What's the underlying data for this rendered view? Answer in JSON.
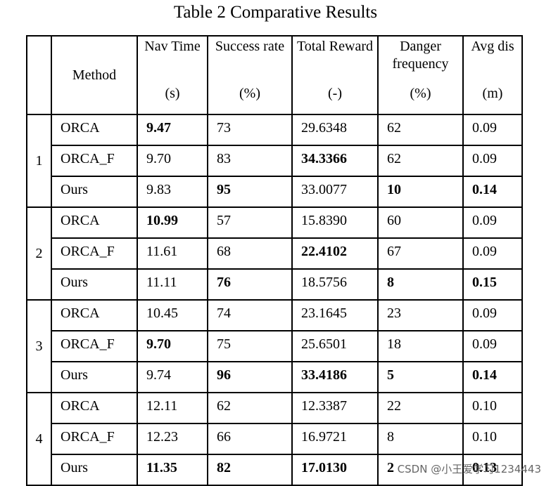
{
  "title": "Table 2 Comparative Results",
  "table": {
    "header": {
      "method": "Method",
      "columns": [
        {
          "name": "Nav Time",
          "unit": "(s)"
        },
        {
          "name": "Success rate",
          "unit": "(%)"
        },
        {
          "name": "Total Reward",
          "unit": "(-)"
        },
        {
          "name": "Danger frequency",
          "unit": "(%)"
        },
        {
          "name": "Avg dis",
          "unit": "(m)"
        }
      ]
    },
    "groups": [
      {
        "label": "1",
        "rows": [
          {
            "method": "ORCA",
            "cells": [
              "9.47",
              "73",
              "29.6348",
              "62",
              "0.09"
            ]
          },
          {
            "method": "ORCA_F",
            "cells": [
              "9.70",
              "83",
              "34.3366",
              "62",
              "0.09"
            ]
          },
          {
            "method": "Ours",
            "cells": [
              "9.83",
              "95",
              "33.0077",
              "10",
              "0.14"
            ]
          }
        ]
      },
      {
        "label": "2",
        "rows": [
          {
            "method": "ORCA",
            "cells": [
              "10.99",
              "57",
              "15.8390",
              "60",
              "0.09"
            ]
          },
          {
            "method": "ORCA_F",
            "cells": [
              "11.61",
              "68",
              "22.4102",
              "67",
              "0.09"
            ]
          },
          {
            "method": "Ours",
            "cells": [
              "11.11",
              "76",
              "18.5756",
              "8",
              "0.15"
            ]
          }
        ]
      },
      {
        "label": "3",
        "rows": [
          {
            "method": "ORCA",
            "cells": [
              "10.45",
              "74",
              "23.1645",
              "23",
              "0.09"
            ]
          },
          {
            "method": "ORCA_F",
            "cells": [
              "9.70",
              "75",
              "25.6501",
              "18",
              "0.09"
            ]
          },
          {
            "method": "Ours",
            "cells": [
              "9.74",
              "96",
              "33.4186",
              "5",
              "0.14"
            ]
          }
        ]
      },
      {
        "label": "4",
        "rows": [
          {
            "method": "ORCA",
            "cells": [
              "12.11",
              "62",
              "12.3387",
              "22",
              "0.10"
            ]
          },
          {
            "method": "ORCA_F",
            "cells": [
              "12.23",
              "66",
              "16.9721",
              "8",
              "0.10"
            ]
          },
          {
            "method": "Ours",
            "cells": [
              "11.35",
              "82",
              "17.0130",
              "2",
              "0.13"
            ]
          }
        ]
      }
    ]
  },
  "watermark": "CSDN @小王爱学习1234443"
}
